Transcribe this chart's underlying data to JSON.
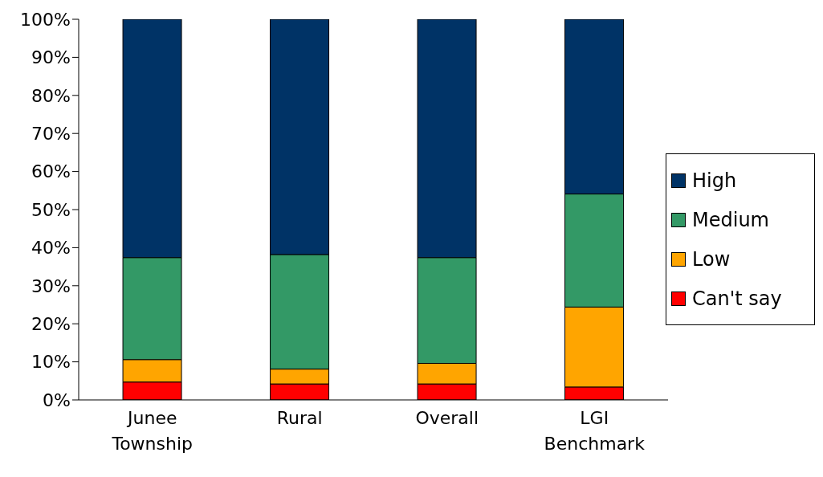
{
  "chart_data": {
    "type": "bar",
    "stacked": true,
    "categories": [
      "Junee Township",
      "Rural",
      "Overall",
      "LGI Benchmark"
    ],
    "series": [
      {
        "name": "Can't say",
        "color": "#ff0000",
        "values": [
          4.7,
          4.2,
          4.2,
          3.4
        ]
      },
      {
        "name": "Low",
        "color": "#ffa500",
        "values": [
          5.9,
          3.9,
          5.4,
          21.0
        ]
      },
      {
        "name": "Medium",
        "color": "#339966",
        "values": [
          26.8,
          30.1,
          27.8,
          29.7
        ]
      },
      {
        "name": "High",
        "color": "#003366",
        "values": [
          62.6,
          61.8,
          62.6,
          45.9
        ]
      }
    ],
    "ylim": [
      0,
      100
    ],
    "yticks": [
      {
        "value": 0,
        "label": "0%"
      },
      {
        "value": 10,
        "label": "10%"
      },
      {
        "value": 20,
        "label": "20%"
      },
      {
        "value": 30,
        "label": "30%"
      },
      {
        "value": 40,
        "label": "40%"
      },
      {
        "value": 50,
        "label": "50%"
      },
      {
        "value": 60,
        "label": "60%"
      },
      {
        "value": 70,
        "label": "70%"
      },
      {
        "value": 80,
        "label": "80%"
      },
      {
        "value": 90,
        "label": "90%"
      },
      {
        "value": 100,
        "label": "100%"
      }
    ],
    "grid": false,
    "legend": "right"
  }
}
